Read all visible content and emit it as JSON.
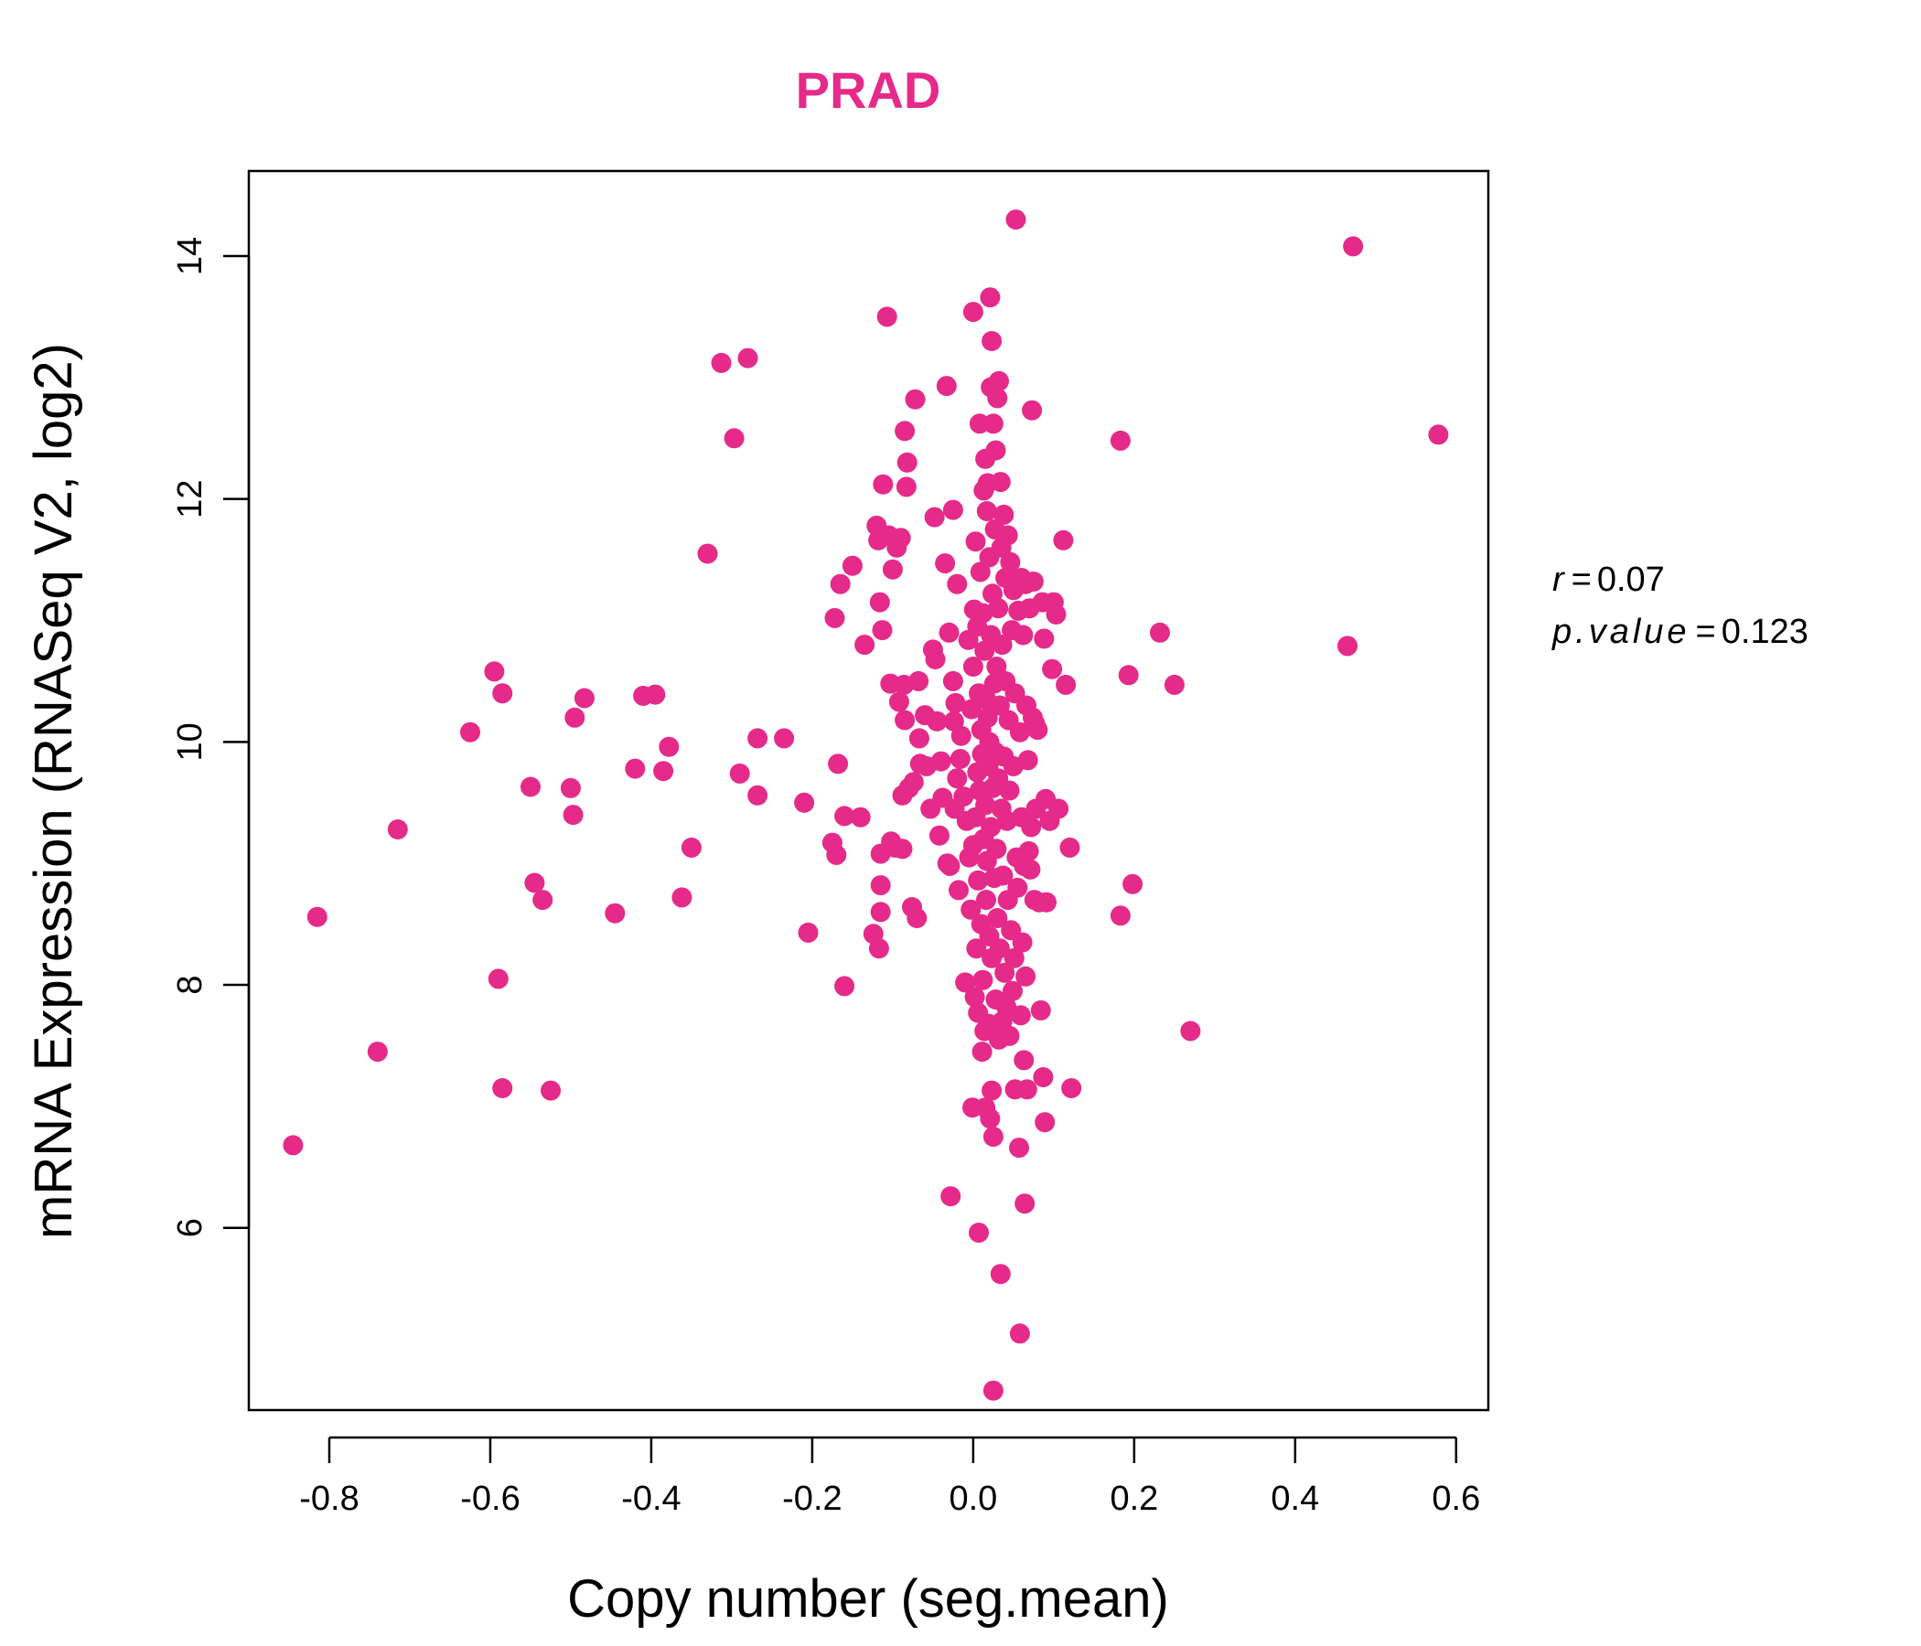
{
  "chart_data": {
    "type": "scatter",
    "title": "PRAD",
    "xlabel": "Copy number (seg.mean)",
    "ylabel": "mRNA Expression (RNASeq V2, log2)",
    "xlim": [
      -0.9,
      0.64
    ],
    "ylim": [
      4.5,
      14.7
    ],
    "x_ticks": [
      -0.8,
      -0.6,
      -0.4,
      -0.2,
      0.0,
      0.2,
      0.4,
      0.6
    ],
    "x_tick_labels": [
      "-0.8",
      "-0.6",
      "-0.4",
      "-0.2",
      "0.0",
      "0.2",
      "0.4",
      "0.6"
    ],
    "y_ticks": [
      6,
      8,
      10,
      12,
      14
    ],
    "y_tick_labels": [
      "6",
      "8",
      "10",
      "12",
      "14"
    ],
    "grid": false,
    "point_color": "#e52a8a",
    "stats": {
      "r_label": "r",
      "r_value": "0.07",
      "p_label": "p.value",
      "p_value": "0.123"
    },
    "points": [
      [
        -0.845,
        6.68
      ],
      [
        -0.815,
        8.56
      ],
      [
        -0.74,
        7.45
      ],
      [
        -0.715,
        9.28
      ],
      [
        -0.625,
        10.08
      ],
      [
        -0.595,
        10.58
      ],
      [
        -0.59,
        8.05
      ],
      [
        -0.585,
        10.4
      ],
      [
        -0.585,
        7.15
      ],
      [
        -0.55,
        9.63
      ],
      [
        -0.545,
        8.84
      ],
      [
        -0.535,
        8.7
      ],
      [
        -0.525,
        7.13
      ],
      [
        -0.5,
        9.62
      ],
      [
        -0.497,
        9.4
      ],
      [
        -0.495,
        10.2
      ],
      [
        -0.483,
        10.36
      ],
      [
        -0.445,
        8.59
      ],
      [
        -0.42,
        9.78
      ],
      [
        -0.41,
        10.38
      ],
      [
        -0.395,
        10.39
      ],
      [
        -0.385,
        9.76
      ],
      [
        -0.378,
        9.96
      ],
      [
        -0.362,
        8.72
      ],
      [
        -0.35,
        9.13
      ],
      [
        -0.33,
        11.55
      ],
      [
        -0.313,
        13.12
      ],
      [
        -0.297,
        12.5
      ],
      [
        -0.29,
        9.74
      ],
      [
        -0.28,
        13.16
      ],
      [
        -0.268,
        9.56
      ],
      [
        -0.268,
        10.03
      ],
      [
        -0.235,
        10.03
      ],
      [
        -0.21,
        9.5
      ],
      [
        -0.205,
        8.43
      ],
      [
        -0.175,
        9.17
      ],
      [
        -0.172,
        11.02
      ],
      [
        -0.17,
        9.07
      ],
      [
        -0.168,
        9.82
      ],
      [
        -0.165,
        11.3
      ],
      [
        -0.16,
        7.99
      ],
      [
        -0.16,
        9.39
      ],
      [
        -0.15,
        11.45
      ],
      [
        -0.14,
        9.38
      ],
      [
        -0.135,
        10.8
      ],
      [
        -0.124,
        8.42
      ],
      [
        -0.12,
        11.78
      ],
      [
        -0.118,
        11.66
      ],
      [
        -0.117,
        8.3
      ],
      [
        -0.116,
        11.15
      ],
      [
        -0.115,
        8.82
      ],
      [
        -0.115,
        8.6
      ],
      [
        -0.115,
        9.08
      ],
      [
        -0.113,
        10.92
      ],
      [
        -0.112,
        12.12
      ],
      [
        -0.107,
        13.5
      ],
      [
        -0.105,
        11.7
      ],
      [
        -0.103,
        10.48
      ],
      [
        -0.102,
        9.18
      ],
      [
        -0.1,
        11.42
      ],
      [
        -0.097,
        9.13
      ],
      [
        -0.095,
        11.6
      ],
      [
        -0.092,
        10.33
      ],
      [
        -0.09,
        11.68
      ],
      [
        -0.088,
        9.56
      ],
      [
        -0.088,
        9.12
      ],
      [
        -0.086,
        10.47
      ],
      [
        -0.085,
        10.18
      ],
      [
        -0.085,
        12.56
      ],
      [
        -0.083,
        12.1
      ],
      [
        -0.082,
        12.3
      ],
      [
        -0.08,
        9.62
      ],
      [
        -0.076,
        8.64
      ],
      [
        -0.074,
        9.67
      ],
      [
        -0.072,
        12.82
      ],
      [
        -0.07,
        8.55
      ],
      [
        -0.068,
        10.5
      ],
      [
        -0.067,
        10.03
      ],
      [
        -0.066,
        9.82
      ],
      [
        -0.06,
        10.22
      ],
      [
        -0.058,
        9.8
      ],
      [
        -0.053,
        9.45
      ],
      [
        -0.05,
        10.76
      ],
      [
        -0.048,
        11.85
      ],
      [
        -0.047,
        10.68
      ],
      [
        -0.045,
        10.17
      ],
      [
        -0.042,
        9.23
      ],
      [
        -0.04,
        9.84
      ],
      [
        -0.038,
        9.54
      ],
      [
        -0.035,
        11.47
      ],
      [
        -0.033,
        12.93
      ],
      [
        -0.032,
        9.0
      ],
      [
        -0.03,
        10.9
      ],
      [
        -0.029,
        8.98
      ],
      [
        -0.028,
        6.26
      ],
      [
        -0.025,
        11.91
      ],
      [
        -0.025,
        10.5
      ],
      [
        -0.024,
        10.17
      ],
      [
        -0.023,
        9.45
      ],
      [
        -0.022,
        10.32
      ],
      [
        -0.02,
        9.7
      ],
      [
        -0.02,
        11.3
      ],
      [
        -0.018,
        8.78
      ],
      [
        -0.016,
        9.86
      ],
      [
        -0.015,
        10.05
      ],
      [
        -0.012,
        9.55
      ],
      [
        -0.01,
        8.02
      ],
      [
        -0.008,
        9.35
      ],
      [
        -0.006,
        10.84
      ],
      [
        -0.005,
        9.05
      ],
      [
        -0.003,
        8.62
      ],
      [
        -0.002,
        10.27
      ],
      [
        -0.001,
        6.99
      ],
      [
        0.0,
        13.54
      ],
      [
        0.0,
        9.15
      ],
      [
        0.0,
        10.62
      ],
      [
        0.001,
        11.09
      ],
      [
        0.002,
        7.9
      ],
      [
        0.003,
        9.38
      ],
      [
        0.003,
        11.65
      ],
      [
        0.004,
        8.3
      ],
      [
        0.005,
        9.75
      ],
      [
        0.005,
        10.95
      ],
      [
        0.006,
        7.77
      ],
      [
        0.006,
        8.86
      ],
      [
        0.007,
        10.4
      ],
      [
        0.007,
        5.96
      ],
      [
        0.008,
        12.62
      ],
      [
        0.008,
        9.6
      ],
      [
        0.009,
        11.4
      ],
      [
        0.01,
        8.5
      ],
      [
        0.01,
        10.1
      ],
      [
        0.011,
        7.45
      ],
      [
        0.011,
        9.9
      ],
      [
        0.012,
        11.06
      ],
      [
        0.012,
        8.04
      ],
      [
        0.013,
        12.07
      ],
      [
        0.013,
        9.2
      ],
      [
        0.014,
        10.75
      ],
      [
        0.014,
        7.62
      ],
      [
        0.015,
        6.99
      ],
      [
        0.015,
        12.33
      ],
      [
        0.015,
        9.48
      ],
      [
        0.016,
        10.35
      ],
      [
        0.016,
        8.7
      ],
      [
        0.017,
        11.9
      ],
      [
        0.017,
        9.02
      ],
      [
        0.018,
        10.2
      ],
      [
        0.018,
        12.13
      ],
      [
        0.019,
        7.68
      ],
      [
        0.019,
        9.8
      ],
      [
        0.02,
        11.52
      ],
      [
        0.02,
        8.4
      ],
      [
        0.02,
        10.0
      ],
      [
        0.021,
        13.66
      ],
      [
        0.021,
        6.9
      ],
      [
        0.022,
        12.92
      ],
      [
        0.022,
        9.3
      ],
      [
        0.022,
        10.88
      ],
      [
        0.023,
        7.13
      ],
      [
        0.023,
        13.3
      ],
      [
        0.023,
        8.22
      ],
      [
        0.024,
        11.22
      ],
      [
        0.024,
        9.62
      ],
      [
        0.025,
        4.66
      ],
      [
        0.025,
        6.75
      ],
      [
        0.025,
        12.62
      ],
      [
        0.026,
        10.48
      ],
      [
        0.026,
        8.88
      ],
      [
        0.027,
        11.75
      ],
      [
        0.027,
        9.92
      ],
      [
        0.028,
        12.4
      ],
      [
        0.028,
        7.88
      ],
      [
        0.029,
        10.62
      ],
      [
        0.029,
        9.12
      ],
      [
        0.03,
        12.83
      ],
      [
        0.03,
        8.55
      ],
      [
        0.031,
        11.1
      ],
      [
        0.031,
        9.7
      ],
      [
        0.032,
        12.97
      ],
      [
        0.032,
        7.55
      ],
      [
        0.033,
        10.3
      ],
      [
        0.033,
        8.3
      ],
      [
        0.034,
        5.62
      ],
      [
        0.034,
        12.14
      ],
      [
        0.035,
        9.45
      ],
      [
        0.035,
        11.6
      ],
      [
        0.036,
        7.7
      ],
      [
        0.036,
        10.8
      ],
      [
        0.037,
        8.9
      ],
      [
        0.038,
        11.87
      ],
      [
        0.038,
        9.88
      ],
      [
        0.039,
        8.1
      ],
      [
        0.04,
        10.5
      ],
      [
        0.04,
        11.35
      ],
      [
        0.041,
        7.82
      ],
      [
        0.042,
        9.35
      ],
      [
        0.043,
        11.7
      ],
      [
        0.043,
        8.7
      ],
      [
        0.044,
        10.18
      ],
      [
        0.045,
        7.58
      ],
      [
        0.045,
        9.6
      ],
      [
        0.046,
        11.48
      ],
      [
        0.047,
        8.45
      ],
      [
        0.048,
        10.92
      ],
      [
        0.049,
        7.95
      ],
      [
        0.05,
        9.8
      ],
      [
        0.05,
        11.25
      ],
      [
        0.051,
        8.22
      ],
      [
        0.052,
        7.14
      ],
      [
        0.052,
        10.4
      ],
      [
        0.053,
        14.3
      ],
      [
        0.054,
        9.05
      ],
      [
        0.055,
        8.8
      ],
      [
        0.056,
        11.08
      ],
      [
        0.057,
        6.66
      ],
      [
        0.058,
        10.08
      ],
      [
        0.058,
        5.13
      ],
      [
        0.059,
        7.75
      ],
      [
        0.06,
        9.38
      ],
      [
        0.06,
        11.35
      ],
      [
        0.061,
        8.35
      ],
      [
        0.062,
        10.88
      ],
      [
        0.063,
        7.38
      ],
      [
        0.063,
        8.98
      ],
      [
        0.064,
        6.2
      ],
      [
        0.065,
        11.3
      ],
      [
        0.065,
        8.07
      ],
      [
        0.066,
        10.3
      ],
      [
        0.067,
        7.14
      ],
      [
        0.068,
        9.85
      ],
      [
        0.069,
        9.1
      ],
      [
        0.07,
        11.1
      ],
      [
        0.071,
        8.95
      ],
      [
        0.072,
        9.3
      ],
      [
        0.073,
        12.73
      ],
      [
        0.074,
        10.2
      ],
      [
        0.075,
        11.32
      ],
      [
        0.076,
        8.7
      ],
      [
        0.077,
        10.15
      ],
      [
        0.078,
        9.45
      ],
      [
        0.08,
        10.1
      ],
      [
        0.082,
        8.68
      ],
      [
        0.084,
        7.79
      ],
      [
        0.086,
        11.15
      ],
      [
        0.087,
        7.24
      ],
      [
        0.088,
        10.85
      ],
      [
        0.089,
        6.87
      ],
      [
        0.09,
        9.53
      ],
      [
        0.091,
        8.68
      ],
      [
        0.095,
        9.35
      ],
      [
        0.098,
        10.6
      ],
      [
        0.1,
        11.15
      ],
      [
        0.103,
        11.05
      ],
      [
        0.106,
        9.45
      ],
      [
        0.112,
        11.66
      ],
      [
        0.115,
        10.47
      ],
      [
        0.12,
        9.13
      ],
      [
        0.122,
        7.15
      ],
      [
        0.183,
        8.57
      ],
      [
        0.183,
        12.48
      ],
      [
        0.193,
        10.55
      ],
      [
        0.198,
        8.83
      ],
      [
        0.232,
        10.9
      ],
      [
        0.25,
        10.47
      ],
      [
        0.27,
        7.62
      ],
      [
        0.465,
        10.79
      ],
      [
        0.472,
        14.08
      ],
      [
        0.578,
        12.53
      ]
    ]
  }
}
